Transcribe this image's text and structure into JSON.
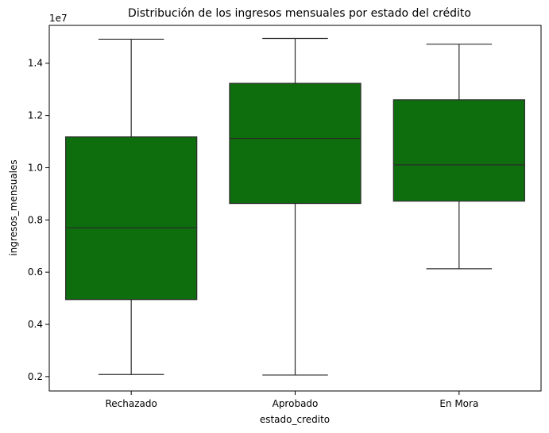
{
  "chart_data": {
    "type": "box",
    "title": "Distribución de los ingresos mensuales por estado del crédito",
    "xlabel": "estado_credito",
    "ylabel": "ingresos_mensuales",
    "y_offset_label": "1e7",
    "y_scale": 10000000,
    "ylim": [
      1450000,
      15450000
    ],
    "yticks": [
      2000000,
      4000000,
      6000000,
      8000000,
      10000000,
      12000000,
      14000000
    ],
    "ytick_labels": [
      "0.2",
      "0.4",
      "0.6",
      "0.8",
      "1.0",
      "1.2",
      "1.4"
    ],
    "categories": [
      "Rechazado",
      "Aprobado",
      "En Mora"
    ],
    "box_color": "#0e6e0e",
    "line_color": "#2b2b2b",
    "grid": false,
    "boxes": [
      {
        "category": "Rechazado",
        "whislo": 2080000,
        "q1": 4950000,
        "med": 7700000,
        "q3": 11180000,
        "whishi": 14920000
      },
      {
        "category": "Aprobado",
        "whislo": 2060000,
        "q1": 8630000,
        "med": 11120000,
        "q3": 13230000,
        "whishi": 14950000
      },
      {
        "category": "En Mora",
        "whislo": 6130000,
        "q1": 8720000,
        "med": 10110000,
        "q3": 12600000,
        "whishi": 14730000
      }
    ]
  }
}
